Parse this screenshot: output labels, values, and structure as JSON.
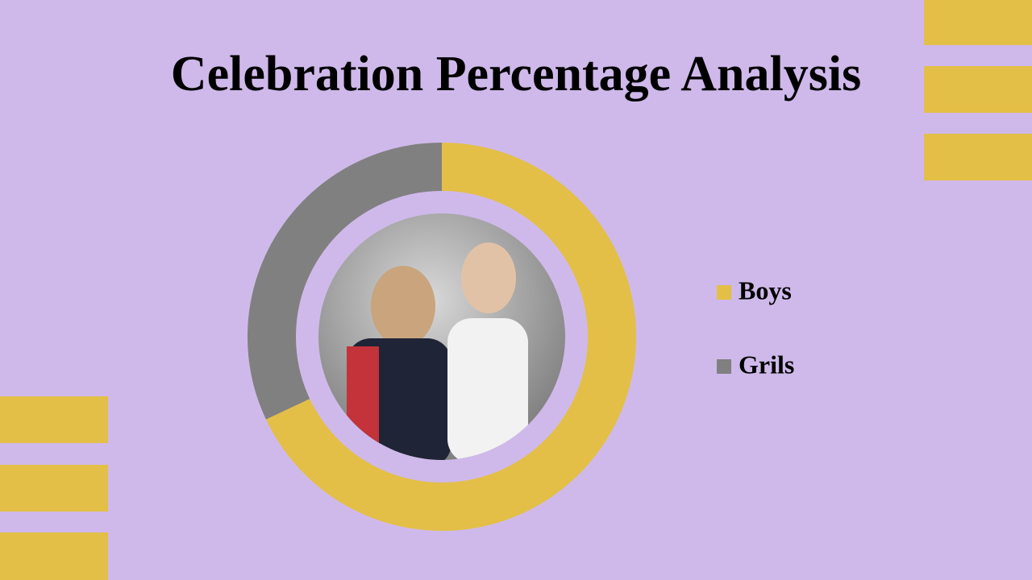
{
  "chart_data": {
    "type": "donut",
    "title": "Celebration Percentage Analysis",
    "categories": [
      "Boys",
      "Grils"
    ],
    "values": [
      68,
      32
    ],
    "colors": [
      "#e3bf47",
      "#808080"
    ]
  }
}
